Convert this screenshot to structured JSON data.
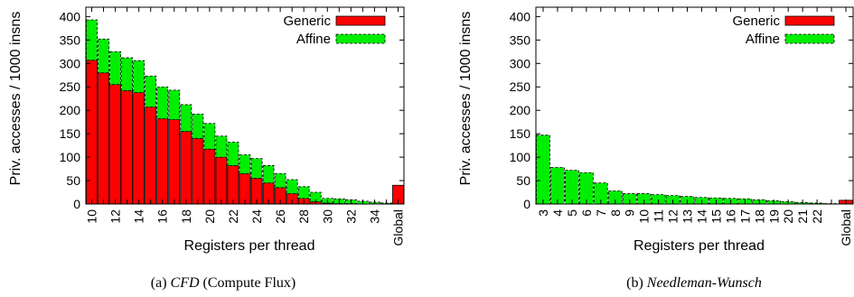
{
  "chart_data": [
    {
      "type": "bar",
      "stacked": true,
      "caption_prefix": "(a)",
      "caption_italic": "CFD",
      "caption_rest": "(Compute Flux)",
      "xlabel": "Registers per thread",
      "ylabel": "Priv. accesses / 1000 insns",
      "ylim": [
        0,
        420
      ],
      "yticks": [
        0,
        50,
        100,
        150,
        200,
        250,
        300,
        350,
        400
      ],
      "legend_position": "top-right",
      "colors": {
        "Generic": "#ff0000",
        "Affine": "#00ee00"
      },
      "categories": [
        "10",
        "11",
        "12",
        "13",
        "14",
        "15",
        "16",
        "17",
        "18",
        "19",
        "20",
        "21",
        "22",
        "23",
        "24",
        "25",
        "26",
        "27",
        "28",
        "29",
        "30",
        "31",
        "32",
        "33",
        "34",
        "35",
        "Global"
      ],
      "xtick_labels": [
        "10",
        "",
        "12",
        "",
        "14",
        "",
        "16",
        "",
        "18",
        "",
        "20",
        "",
        "22",
        "",
        "24",
        "",
        "26",
        "",
        "28",
        "",
        "30",
        "",
        "32",
        "",
        "34",
        "",
        "Global"
      ],
      "series": [
        {
          "name": "Generic",
          "values": [
            307,
            280,
            255,
            242,
            238,
            207,
            182,
            180,
            155,
            140,
            117,
            100,
            82,
            65,
            55,
            45,
            35,
            22,
            12,
            5,
            2,
            1,
            1,
            0,
            0,
            0,
            40
          ]
        },
        {
          "name": "Affine",
          "values": [
            86,
            72,
            70,
            70,
            68,
            66,
            68,
            63,
            57,
            52,
            55,
            45,
            50,
            40,
            42,
            37,
            30,
            30,
            25,
            20,
            10,
            10,
            8,
            6,
            4,
            2,
            0
          ]
        }
      ]
    },
    {
      "type": "bar",
      "stacked": true,
      "caption_prefix": "(b)",
      "caption_italic": "Needleman-Wunsch",
      "caption_rest": "",
      "xlabel": "Registers per thread",
      "ylabel": "Priv. accesses / 1000 insns",
      "ylim": [
        0,
        420
      ],
      "yticks": [
        0,
        50,
        100,
        150,
        200,
        250,
        300,
        350,
        400
      ],
      "legend_position": "top-right",
      "colors": {
        "Generic": "#ff0000",
        "Affine": "#00ee00"
      },
      "categories": [
        "3",
        "4",
        "5",
        "6",
        "7",
        "8",
        "9",
        "10",
        "11",
        "12",
        "13",
        "14",
        "15",
        "16",
        "17",
        "18",
        "19",
        "20",
        "21",
        "22",
        "23",
        "Global"
      ],
      "xtick_labels": [
        "3",
        "4",
        "5",
        "6",
        "7",
        "8",
        "9",
        "10",
        "11",
        "12",
        "13",
        "14",
        "15",
        "16",
        "17",
        "18",
        "19",
        "20",
        "21",
        "22",
        "",
        "Global"
      ],
      "series": [
        {
          "name": "Generic",
          "values": [
            0,
            0,
            0,
            0,
            0,
            0,
            0,
            0,
            0,
            0,
            0,
            0,
            0,
            0,
            0,
            0,
            0,
            0,
            0,
            0,
            0,
            8
          ]
        },
        {
          "name": "Affine",
          "values": [
            147,
            78,
            72,
            67,
            45,
            28,
            22,
            22,
            20,
            18,
            16,
            14,
            13,
            12,
            11,
            9,
            7,
            5,
            3,
            2,
            1,
            0
          ]
        }
      ]
    }
  ]
}
